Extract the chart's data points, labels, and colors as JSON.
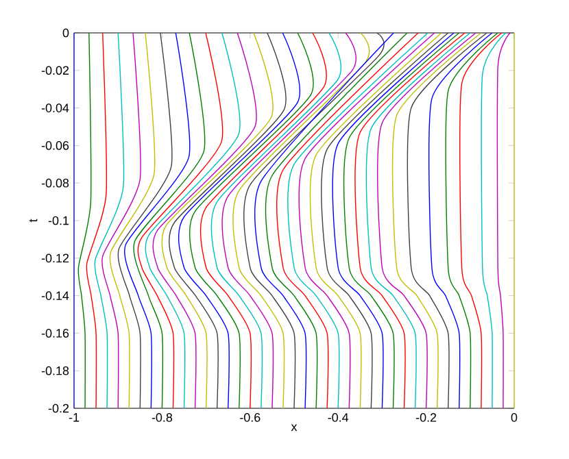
{
  "chart_data": {
    "type": "line",
    "xlabel": "x",
    "ylabel": "t",
    "xlim": [
      -1,
      0
    ],
    "ylim": [
      -0.2,
      0
    ],
    "xticks": [
      -1,
      -0.8,
      -0.6,
      -0.4,
      -0.2,
      0
    ],
    "yticks": [
      -0.2,
      -0.18,
      -0.16,
      -0.14,
      -0.12,
      -0.1,
      -0.08,
      -0.06,
      -0.04,
      -0.02,
      0
    ],
    "series": [
      {
        "color": "#0000ff",
        "x": [
          -1,
          -1
        ],
        "values": [
          -0.2,
          0
        ]
      },
      {
        "color": "#008000",
        "x": [
          -0.975,
          -0.975,
          -0.983,
          -0.99,
          -0.962,
          -0.966
        ],
        "values": [
          -0.2,
          -0.16,
          -0.14,
          -0.125,
          -0.09,
          0
        ]
      },
      {
        "color": "#ff0000",
        "x": [
          -0.95,
          -0.95,
          -0.961,
          -0.971,
          -0.927,
          -0.935
        ],
        "values": [
          -0.2,
          -0.16,
          -0.14,
          -0.123,
          -0.086,
          0
        ]
      },
      {
        "color": "#00bfbf",
        "x": [
          -0.925,
          -0.925,
          -0.939,
          -0.952,
          -0.888,
          -0.9
        ],
        "values": [
          -0.2,
          -0.16,
          -0.14,
          -0.121,
          -0.082,
          0
        ]
      },
      {
        "color": "#bf00bf",
        "x": [
          -0.9,
          -0.9,
          -0.918,
          -0.935,
          -0.85,
          -0.866
        ],
        "values": [
          -0.2,
          -0.16,
          -0.14,
          -0.119,
          -0.078,
          0
        ]
      },
      {
        "color": "#bfbf00",
        "x": [
          -0.875,
          -0.875,
          -0.896,
          -0.917,
          -0.818,
          -0.838
        ],
        "values": [
          -0.2,
          -0.16,
          -0.14,
          -0.117,
          -0.075,
          0
        ]
      },
      {
        "color": "#404040",
        "x": [
          -0.85,
          -0.85,
          -0.874,
          -0.898,
          -0.779,
          -0.804
        ],
        "values": [
          -0.2,
          -0.16,
          -0.14,
          -0.115,
          -0.071,
          0
        ]
      },
      {
        "color": "#0000ff",
        "x": [
          -0.825,
          -0.825,
          -0.854,
          -0.883,
          -0.739,
          -0.769
        ],
        "values": [
          -0.2,
          -0.16,
          -0.14,
          -0.113,
          -0.066,
          0
        ]
      },
      {
        "color": "#008000",
        "x": [
          -0.8,
          -0.8,
          -0.831,
          -0.862,
          -0.705,
          -0.738
        ],
        "values": [
          -0.2,
          -0.16,
          -0.14,
          -0.111,
          -0.063,
          0
        ]
      },
      {
        "color": "#ff0000",
        "x": [
          -0.775,
          -0.775,
          -0.811,
          -0.846,
          -0.846,
          -0.665,
          -0.701
        ],
        "values": [
          -0.2,
          -0.16,
          -0.14,
          -0.125,
          -0.109,
          -0.058,
          0
        ]
      },
      {
        "color": "#00bfbf",
        "x": [
          -0.75,
          -0.75,
          -0.789,
          -0.828,
          -0.828,
          -0.626,
          -0.664
        ],
        "values": [
          -0.2,
          -0.16,
          -0.14,
          -0.125,
          -0.107,
          -0.054,
          0
        ]
      },
      {
        "color": "#bf00bf",
        "x": [
          -0.725,
          -0.725,
          -0.768,
          -0.81,
          -0.81,
          -0.589,
          -0.629
        ],
        "values": [
          -0.2,
          -0.16,
          -0.14,
          -0.125,
          -0.105,
          -0.05,
          0
        ]
      },
      {
        "color": "#bfbf00",
        "x": [
          -0.7,
          -0.7,
          -0.745,
          -0.789,
          -0.789,
          -0.552,
          -0.592
        ],
        "values": [
          -0.2,
          -0.16,
          -0.14,
          -0.125,
          -0.102,
          -0.045,
          0
        ]
      },
      {
        "color": "#404040",
        "x": [
          -0.675,
          -0.675,
          -0.724,
          -0.772,
          -0.772,
          -0.523,
          -0.561
        ],
        "values": [
          -0.2,
          -0.16,
          -0.14,
          -0.125,
          -0.101,
          -0.041,
          0
        ]
      },
      {
        "color": "#0000ff",
        "x": [
          -0.65,
          -0.65,
          -0.7,
          -0.75,
          -0.75,
          -0.492,
          -0.526
        ],
        "values": [
          -0.2,
          -0.16,
          -0.14,
          -0.125,
          -0.098,
          -0.037,
          0
        ]
      },
      {
        "color": "#008000",
        "x": [
          -0.625,
          -0.625,
          -0.675,
          -0.725,
          -0.725,
          -0.462,
          -0.492
        ],
        "values": [
          -0.2,
          -0.16,
          -0.14,
          -0.125,
          -0.095,
          -0.033,
          0
        ]
      },
      {
        "color": "#ff0000",
        "x": [
          -0.6,
          -0.6,
          -0.65,
          -0.7,
          -0.7,
          -0.433,
          -0.458
        ],
        "values": [
          -0.2,
          -0.16,
          -0.14,
          -0.125,
          -0.093,
          -0.029,
          0
        ]
      },
      {
        "color": "#00bfbf",
        "x": [
          -0.575,
          -0.575,
          -0.625,
          -0.675,
          -0.675,
          -0.401,
          -0.421
        ],
        "values": [
          -0.2,
          -0.16,
          -0.14,
          -0.125,
          -0.09,
          -0.025,
          0
        ]
      },
      {
        "color": "#bf00bf",
        "x": [
          -0.55,
          -0.55,
          -0.6,
          -0.65,
          -0.65,
          -0.368,
          -0.383
        ],
        "values": [
          -0.2,
          -0.16,
          -0.14,
          -0.125,
          -0.087,
          -0.02,
          0
        ]
      },
      {
        "color": "#bfbf00",
        "x": [
          -0.525,
          -0.525,
          -0.575,
          -0.625,
          -0.625,
          -0.339,
          -0.349
        ],
        "values": [
          -0.2,
          -0.16,
          -0.14,
          -0.125,
          -0.084,
          -0.016,
          0
        ]
      },
      {
        "color": "#404040",
        "x": [
          -0.5,
          -0.5,
          -0.55,
          -0.6,
          -0.6,
          -0.307,
          -0.312
        ],
        "values": [
          -0.2,
          -0.16,
          -0.14,
          -0.125,
          -0.081,
          -0.012,
          0
        ]
      },
      {
        "color": "#0000ff",
        "x": [
          -0.475,
          -0.475,
          -0.525,
          -0.575,
          -0.575,
          -0.274
        ],
        "values": [
          -0.2,
          -0.16,
          -0.14,
          -0.125,
          -0.079,
          0
        ]
      },
      {
        "color": "#008000",
        "x": [
          -0.45,
          -0.45,
          -0.5,
          -0.55,
          -0.55,
          -0.243
        ],
        "values": [
          -0.2,
          -0.16,
          -0.14,
          -0.125,
          -0.076,
          0
        ]
      },
      {
        "color": "#ff0000",
        "x": [
          -0.425,
          -0.425,
          -0.475,
          -0.525,
          -0.525,
          -0.218
        ],
        "values": [
          -0.2,
          -0.16,
          -0.14,
          -0.125,
          -0.073,
          0
        ]
      },
      {
        "color": "#00bfbf",
        "x": [
          -0.4,
          -0.4,
          -0.45,
          -0.5,
          -0.5,
          -0.196
        ],
        "values": [
          -0.2,
          -0.16,
          -0.14,
          -0.125,
          -0.07,
          0
        ]
      },
      {
        "color": "#bf00bf",
        "x": [
          -0.375,
          -0.375,
          -0.425,
          -0.475,
          -0.475,
          -0.181
        ],
        "values": [
          -0.2,
          -0.16,
          -0.14,
          -0.125,
          -0.067,
          0
        ]
      },
      {
        "color": "#bfbf00",
        "x": [
          -0.35,
          -0.35,
          -0.4,
          -0.45,
          -0.45,
          -0.165
        ],
        "values": [
          -0.2,
          -0.16,
          -0.14,
          -0.125,
          -0.065,
          0
        ]
      },
      {
        "color": "#404040",
        "x": [
          -0.325,
          -0.325,
          -0.375,
          -0.425,
          -0.425,
          -0.15
        ],
        "values": [
          -0.2,
          -0.16,
          -0.14,
          -0.125,
          -0.062,
          0
        ]
      },
      {
        "color": "#0000ff",
        "x": [
          -0.3,
          -0.3,
          -0.35,
          -0.4,
          -0.4,
          -0.137
        ],
        "values": [
          -0.2,
          -0.16,
          -0.14,
          -0.125,
          -0.059,
          0
        ]
      },
      {
        "color": "#008000",
        "x": [
          -0.275,
          -0.275,
          -0.325,
          -0.375,
          -0.375,
          -0.125
        ],
        "values": [
          -0.2,
          -0.16,
          -0.14,
          -0.125,
          -0.056,
          0
        ]
      },
      {
        "color": "#ff0000",
        "x": [
          -0.25,
          -0.25,
          -0.3,
          -0.35,
          -0.35,
          -0.112
        ],
        "values": [
          -0.2,
          -0.16,
          -0.14,
          -0.125,
          -0.053,
          0
        ]
      },
      {
        "color": "#00bfbf",
        "x": [
          -0.225,
          -0.225,
          -0.275,
          -0.325,
          -0.325,
          -0.1
        ],
        "values": [
          -0.2,
          -0.16,
          -0.14,
          -0.125,
          -0.051,
          0
        ]
      },
      {
        "color": "#bf00bf",
        "x": [
          -0.2,
          -0.2,
          -0.25,
          -0.3,
          -0.3,
          -0.087
        ],
        "values": [
          -0.2,
          -0.16,
          -0.14,
          -0.125,
          -0.048,
          0
        ]
      },
      {
        "color": "#bfbf00",
        "x": [
          -0.175,
          -0.175,
          -0.221,
          -0.267,
          -0.267,
          -0.075
        ],
        "values": [
          -0.2,
          -0.16,
          -0.14,
          -0.125,
          -0.044,
          0
        ]
      },
      {
        "color": "#404040",
        "x": [
          -0.15,
          -0.15,
          -0.192,
          -0.234,
          -0.234,
          -0.062
        ],
        "values": [
          -0.2,
          -0.16,
          -0.14,
          -0.125,
          -0.04,
          0
        ]
      },
      {
        "color": "#0000ff",
        "x": [
          -0.125,
          -0.125,
          -0.156,
          -0.187,
          -0.187,
          -0.05
        ],
        "values": [
          -0.2,
          -0.16,
          -0.14,
          -0.125,
          -0.035,
          0
        ]
      },
      {
        "color": "#008000",
        "x": [
          -0.1,
          -0.1,
          -0.125,
          -0.15,
          -0.15,
          -0.037
        ],
        "values": [
          -0.2,
          -0.16,
          -0.14,
          -0.125,
          -0.031,
          0
        ]
      },
      {
        "color": "#ff0000",
        "x": [
          -0.075,
          -0.075,
          -0.097,
          -0.119,
          -0.119,
          -0.028
        ],
        "values": [
          -0.2,
          -0.16,
          -0.14,
          -0.125,
          -0.027,
          0
        ]
      },
      {
        "color": "#00bfbf",
        "x": [
          -0.05,
          -0.05,
          -0.061,
          -0.072,
          -0.072,
          -0.019
        ],
        "values": [
          -0.2,
          -0.16,
          -0.14,
          -0.125,
          -0.022,
          0
        ]
      },
      {
        "color": "#bf00bf",
        "x": [
          -0.025,
          -0.025,
          -0.031,
          -0.037,
          -0.037,
          -0.009
        ],
        "values": [
          -0.2,
          -0.16,
          -0.14,
          -0.125,
          -0.018,
          0
        ]
      },
      {
        "color": "#bfbf00",
        "x": [
          0,
          0
        ],
        "values": [
          -0.2,
          0
        ]
      }
    ]
  }
}
